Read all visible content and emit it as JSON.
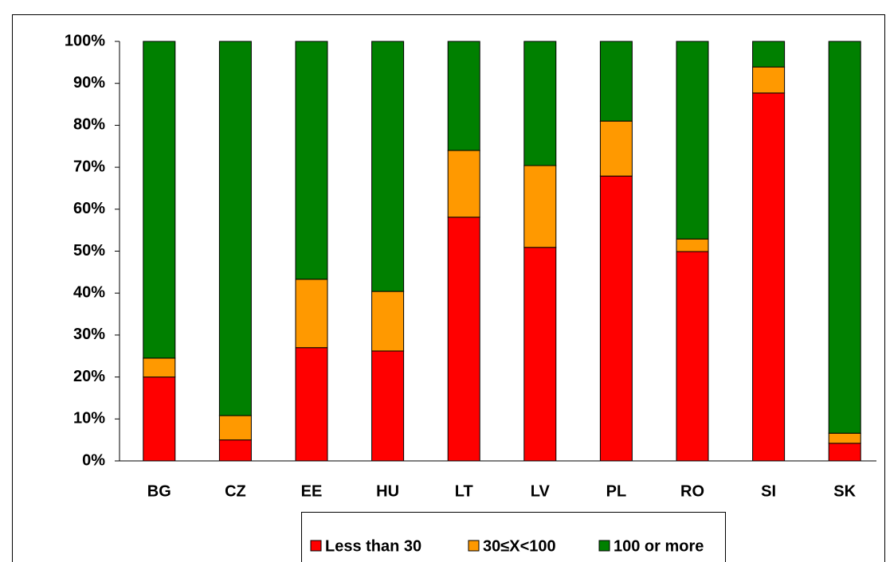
{
  "chart_data": {
    "type": "stacked_bar",
    "categories": [
      "BG",
      "CZ",
      "EE",
      "HU",
      "LT",
      "LV",
      "PL",
      "RO",
      "SI",
      "SK"
    ],
    "series": [
      {
        "name": "Less than 30",
        "color": "#ff0000",
        "values": [
          20,
          5,
          27,
          26.2,
          58.1,
          50.9,
          67.9,
          49.9,
          87.7,
          4.2
        ]
      },
      {
        "name": "30≤X<100",
        "color": "#ff9900",
        "values": [
          4.5,
          5.8,
          16.3,
          14.2,
          15.9,
          19.5,
          13.1,
          3,
          6.2,
          2.4
        ]
      },
      {
        "name": "100 or more",
        "color": "#008000",
        "values": [
          75.5,
          89.2,
          56.7,
          59.6,
          26,
          29.6,
          19,
          47.1,
          6.1,
          93.4
        ]
      }
    ],
    "ylim": [
      0,
      100
    ],
    "yticks": [
      {
        "value": 0,
        "label": "0%"
      },
      {
        "value": 10,
        "label": "10%"
      },
      {
        "value": 20,
        "label": "20%"
      },
      {
        "value": 30,
        "label": "30%"
      },
      {
        "value": 40,
        "label": "40%"
      },
      {
        "value": 50,
        "label": "50%"
      },
      {
        "value": 60,
        "label": "60%"
      },
      {
        "value": 70,
        "label": "70%"
      },
      {
        "value": 80,
        "label": "80%"
      },
      {
        "value": 90,
        "label": "90%"
      },
      {
        "value": 100,
        "label": "100%"
      }
    ],
    "grid": false
  }
}
